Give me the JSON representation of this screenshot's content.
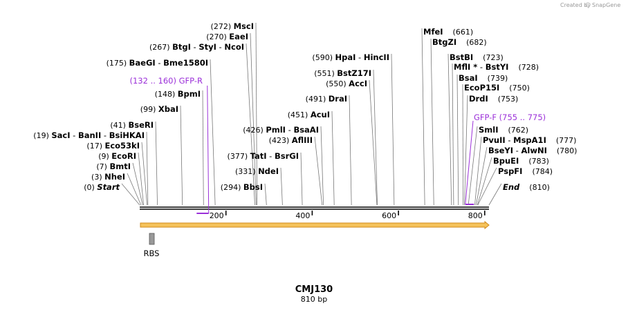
{
  "credit": "Created by",
  "credit_brand": "SnapGene",
  "sequence": {
    "name": "CMJ130",
    "length_label": "810 bp"
  },
  "ruler": {
    "ticks": [
      {
        "label": "200",
        "bp": 200
      },
      {
        "label": "400",
        "bp": 400
      },
      {
        "label": "600",
        "bp": 600
      },
      {
        "label": "800",
        "bp": 800
      }
    ]
  },
  "feature": {
    "label": "RBS"
  },
  "colors": {
    "primer": "#9b30d9",
    "orf_fill": "#f5c25a",
    "orf_stroke": "#d08a1a",
    "rbs_fill": "#999999"
  },
  "left_labels": [
    {
      "pos": "(0)",
      "names": [
        "Start"
      ],
      "bp": 0,
      "italic": true
    },
    {
      "pos": "(3)",
      "names": [
        "NheI"
      ],
      "bp": 3
    },
    {
      "pos": "(7)",
      "names": [
        "BmtI"
      ],
      "bp": 7
    },
    {
      "pos": "(9)",
      "names": [
        "EcoRI"
      ],
      "bp": 9
    },
    {
      "pos": "(17)",
      "names": [
        "Eco53kI"
      ],
      "bp": 17
    },
    {
      "pos": "(19)",
      "names": [
        "SacI",
        "BanII",
        "BsiHKAI"
      ],
      "bp": 19
    },
    {
      "pos": "(41)",
      "names": [
        "BseRI"
      ],
      "bp": 41
    },
    {
      "pos": "(99)",
      "names": [
        "XbaI"
      ],
      "bp": 99
    },
    {
      "pos": "(148)",
      "names": [
        "BpmI"
      ],
      "bp": 148
    },
    {
      "pos": "(175)",
      "names": [
        "BaeGI",
        "Bme1580I"
      ],
      "bp": 175
    },
    {
      "pos": "(267)",
      "names": [
        "BtgI",
        "StyI",
        "NcoI"
      ],
      "bp": 267
    },
    {
      "pos": "(270)",
      "names": [
        "EaeI"
      ],
      "bp": 270
    },
    {
      "pos": "(272)",
      "names": [
        "MscI"
      ],
      "bp": 272
    },
    {
      "pos": "(294)",
      "names": [
        "BbsI"
      ],
      "bp": 294
    },
    {
      "pos": "(331)",
      "names": [
        "NdeI"
      ],
      "bp": 331
    },
    {
      "pos": "(377)",
      "names": [
        "TatI",
        "BsrGI"
      ],
      "bp": 377
    },
    {
      "pos": "(423)",
      "names": [
        "AflIII"
      ],
      "bp": 423
    },
    {
      "pos": "(426)",
      "names": [
        "PmlI",
        "BsaAI"
      ],
      "bp": 426
    },
    {
      "pos": "(451)",
      "names": [
        "AcuI"
      ],
      "bp": 451
    },
    {
      "pos": "(491)",
      "names": [
        "DraI"
      ],
      "bp": 491
    },
    {
      "pos": "(550)",
      "names": [
        "AccI"
      ],
      "bp": 550
    },
    {
      "pos": "(551)",
      "names": [
        "BstZ17I"
      ],
      "bp": 551
    },
    {
      "pos": "(590)",
      "names": [
        "HpaI",
        "HincII"
      ],
      "bp": 590
    }
  ],
  "primer_r": {
    "label": "GFP-R",
    "range": "(132 .. 160)",
    "start": 132,
    "end": 160
  },
  "right_labels": [
    {
      "names": [
        "MfeI"
      ],
      "pos": "(661)",
      "bp": 661
    },
    {
      "names": [
        "BtgZI"
      ],
      "pos": "(682)",
      "bp": 682
    },
    {
      "names": [
        "BstBI"
      ],
      "pos": "(723)",
      "bp": 723
    },
    {
      "names": [
        "MflI *",
        "BstYI"
      ],
      "pos": "(728)",
      "bp": 728
    },
    {
      "names": [
        "BsaI"
      ],
      "pos": "(739)",
      "bp": 739
    },
    {
      "names": [
        "EcoP15I"
      ],
      "pos": "(750)",
      "bp": 750
    },
    {
      "names": [
        "DrdI"
      ],
      "pos": "(753)",
      "bp": 753
    },
    {
      "names": [
        "SmlI"
      ],
      "pos": "(762)",
      "bp": 762
    },
    {
      "names": [
        "PvuII",
        "MspA1I"
      ],
      "pos": "(777)",
      "bp": 777
    },
    {
      "names": [
        "BseYI",
        "AlwNI"
      ],
      "pos": "(780)",
      "bp": 780
    },
    {
      "names": [
        "BpuEI"
      ],
      "pos": "(783)",
      "bp": 783
    },
    {
      "names": [
        "PspFI"
      ],
      "pos": "(784)",
      "bp": 784
    },
    {
      "names": [
        "End"
      ],
      "pos": "(810)",
      "bp": 810,
      "italic": true
    }
  ],
  "primer_f": {
    "label": "GFP-F",
    "range": "(755 .. 775)",
    "start": 755,
    "end": 775
  }
}
